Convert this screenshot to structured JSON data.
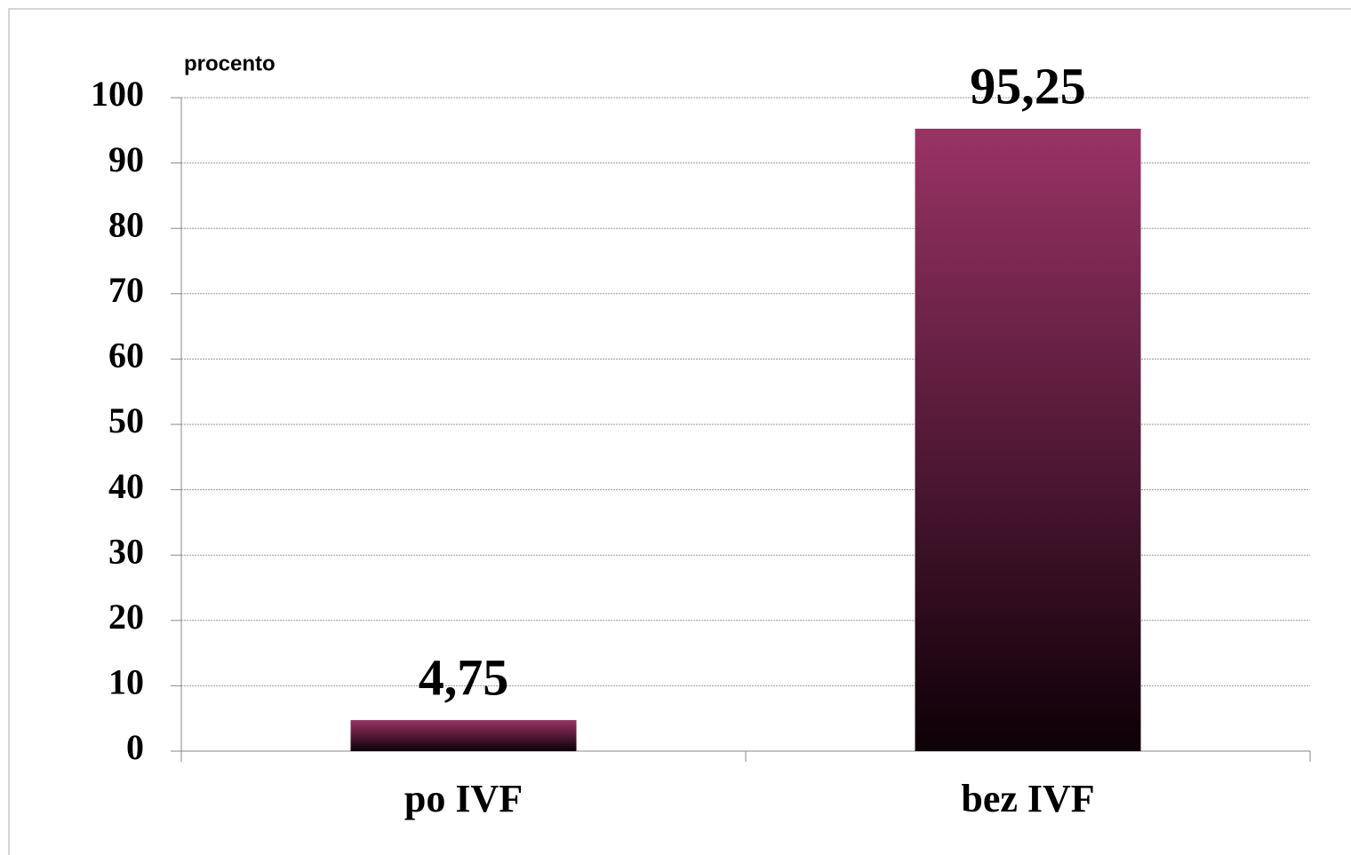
{
  "chart_data": {
    "type": "bar",
    "y_axis_label": "procento",
    "categories": [
      "po IVF",
      "bez IVF"
    ],
    "values": [
      4.75,
      95.25
    ],
    "value_labels": [
      "4,75",
      "95,25"
    ],
    "color": "#993366",
    "ylim": [
      0,
      100
    ],
    "yticks": [
      0,
      10,
      20,
      30,
      40,
      50,
      60,
      70,
      80,
      90,
      100
    ],
    "grid": true
  }
}
